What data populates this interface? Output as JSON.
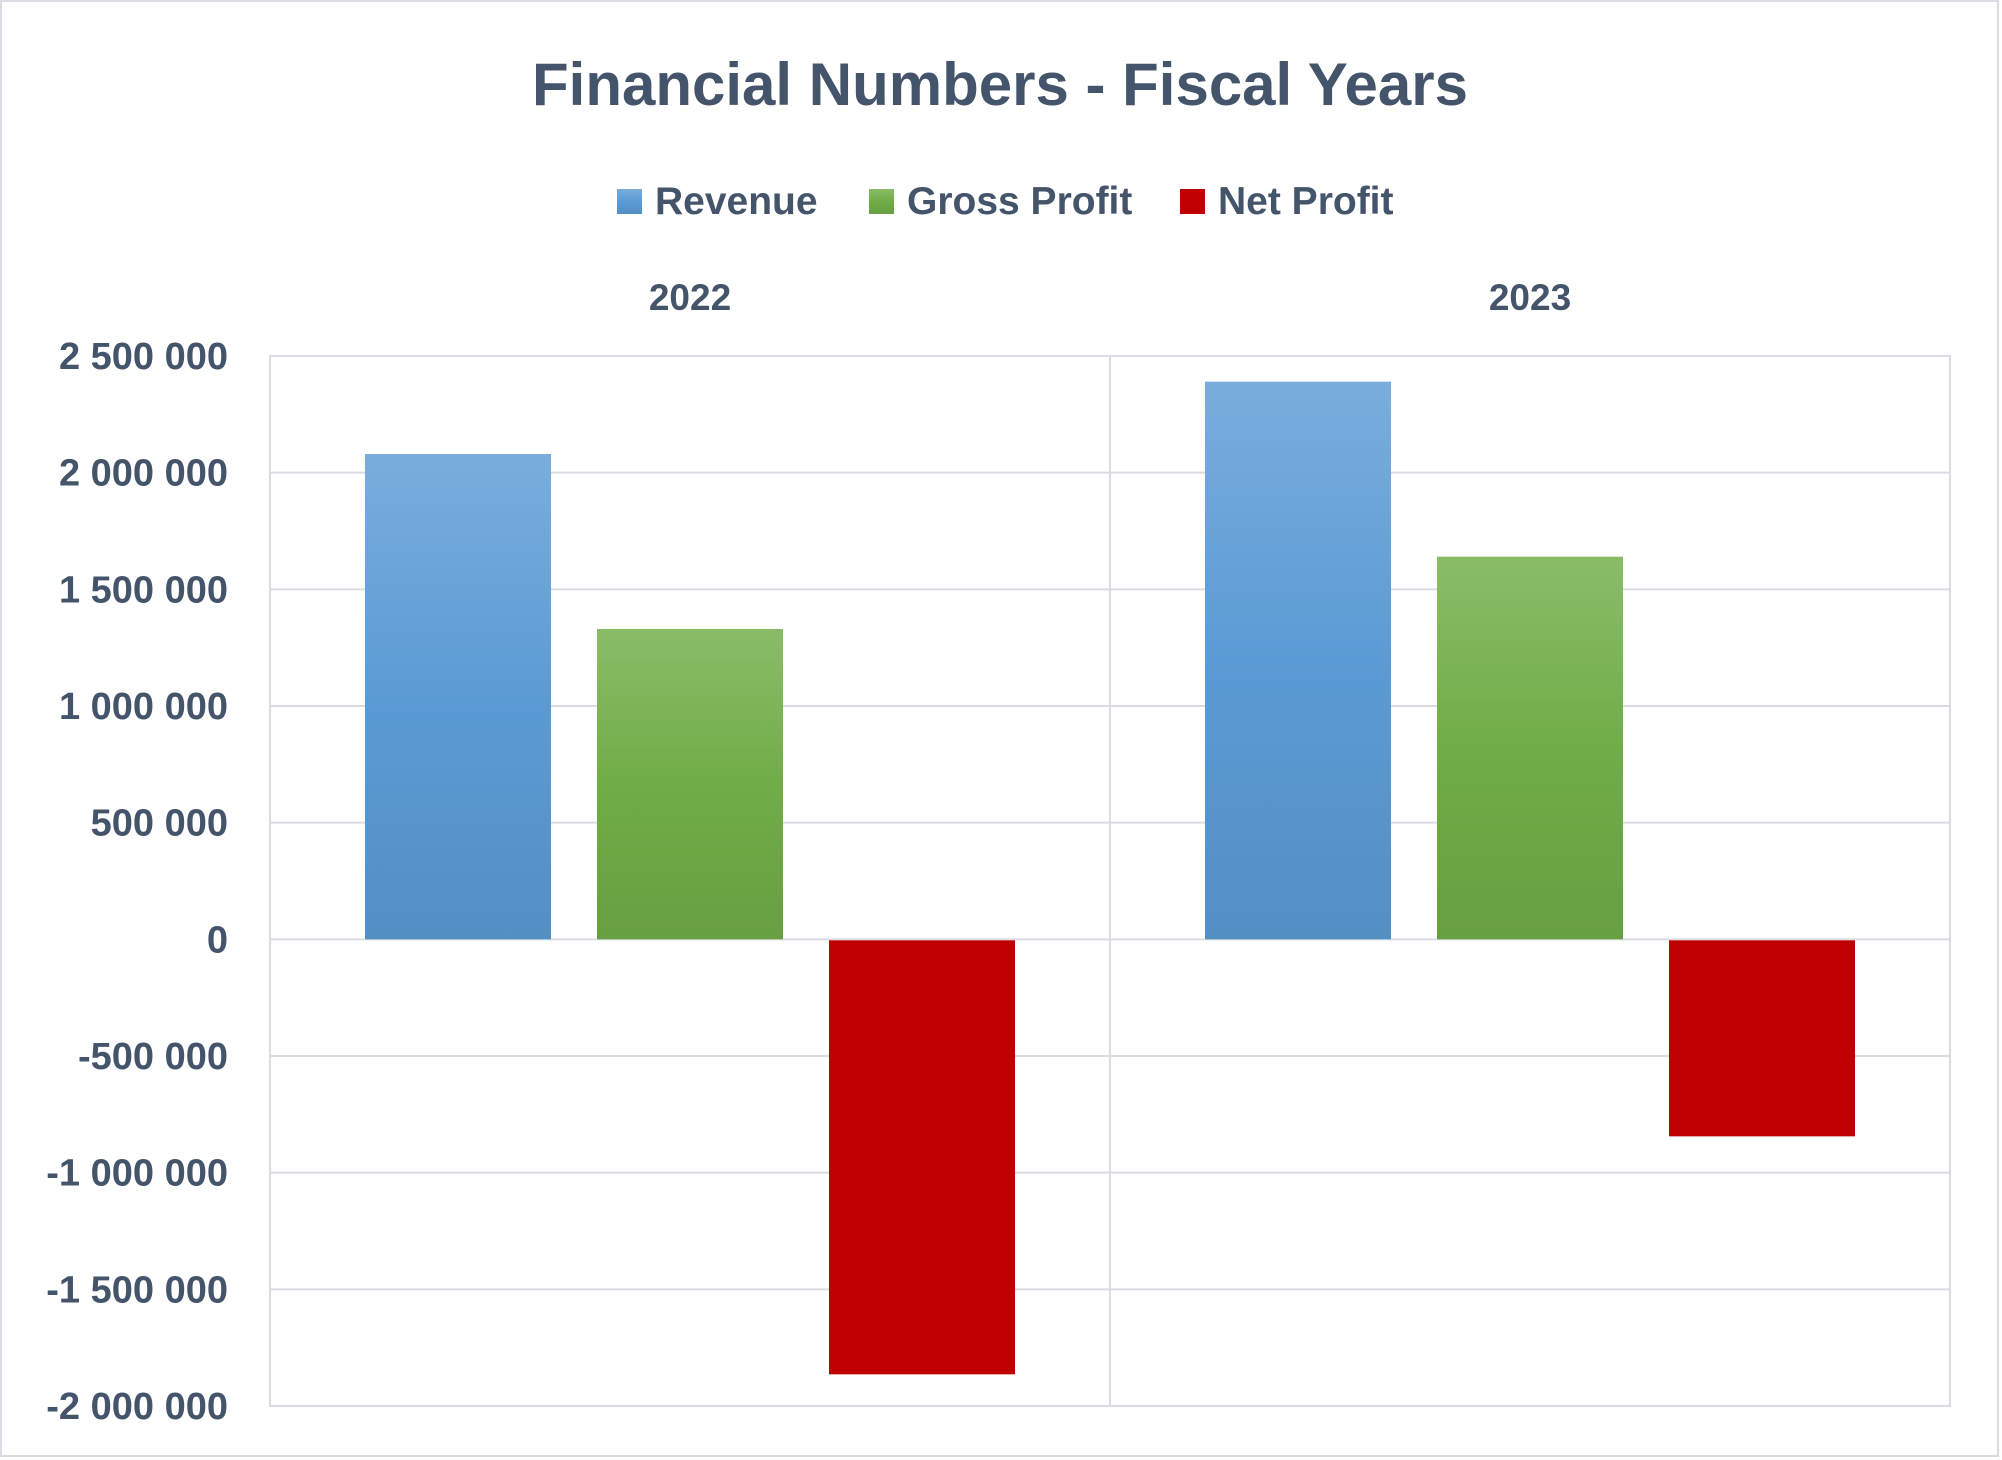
{
  "chart_data": {
    "type": "bar",
    "title": "Financial Numbers - Fiscal Years",
    "categories": [
      "2022",
      "2023"
    ],
    "series": [
      {
        "name": "Revenue",
        "values": [
          2080000,
          2390000
        ],
        "color": "#5b9bd5"
      },
      {
        "name": "Gross Profit",
        "values": [
          1330000,
          1640000
        ],
        "color": "#70ad47"
      },
      {
        "name": "Net Profit",
        "values": [
          -1860000,
          -840000
        ],
        "color": "#c00000"
      }
    ],
    "ylim": [
      -2000000,
      2500000
    ],
    "yticks": [
      2500000,
      2000000,
      1500000,
      1000000,
      500000,
      0,
      -500000,
      -1000000,
      -1500000,
      -2000000
    ],
    "ytick_labels": [
      "2 500 000",
      "2 000 000",
      "1 500 000",
      "1 000 000",
      "500 000",
      "0",
      "-500 000",
      "-1 000 000",
      "-1 500 000",
      "-2 000 000"
    ],
    "xlabel": "",
    "ylabel": "",
    "legend": "top",
    "category_labels_position": "top",
    "grid": true
  }
}
